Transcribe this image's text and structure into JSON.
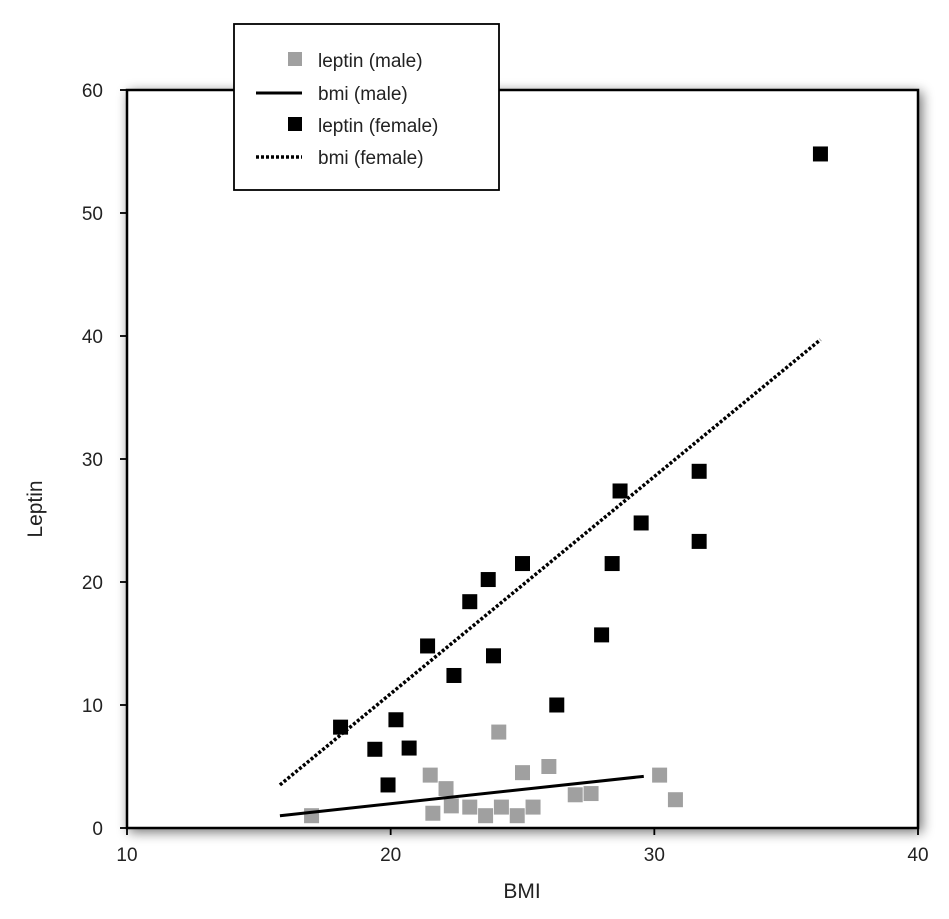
{
  "chart_data": {
    "type": "scatter",
    "title": "",
    "xlabel": "BMI",
    "ylabel": "Leptin",
    "xlim": [
      10,
      40
    ],
    "ylim": [
      0,
      60
    ],
    "x_ticks": [
      10,
      20,
      30,
      40
    ],
    "y_ticks": [
      0,
      10,
      20,
      30,
      40,
      50,
      60
    ],
    "grid": false,
    "legend_position": "top-left",
    "series": [
      {
        "name": "leptin (male)",
        "kind": "points",
        "color": "#a0a0a0",
        "points": [
          [
            17.0,
            1.0
          ],
          [
            21.5,
            4.3
          ],
          [
            21.6,
            1.2
          ],
          [
            22.1,
            3.2
          ],
          [
            22.3,
            1.8
          ],
          [
            23.0,
            1.7
          ],
          [
            23.6,
            1.0
          ],
          [
            24.1,
            7.8
          ],
          [
            24.2,
            1.7
          ],
          [
            24.8,
            1.0
          ],
          [
            25.0,
            4.5
          ],
          [
            25.4,
            1.7
          ],
          [
            26.0,
            5.0
          ],
          [
            27.0,
            2.7
          ],
          [
            27.6,
            2.8
          ],
          [
            30.2,
            4.3
          ],
          [
            30.8,
            2.3
          ]
        ]
      },
      {
        "name": "bmi (male)",
        "kind": "line",
        "style": "solid",
        "color": "#000000",
        "points": [
          [
            15.8,
            1.0
          ],
          [
            29.6,
            4.2
          ]
        ]
      },
      {
        "name": "leptin (female)",
        "kind": "points",
        "color": "#000000",
        "points": [
          [
            18.1,
            8.2
          ],
          [
            19.4,
            6.4
          ],
          [
            19.9,
            3.5
          ],
          [
            20.2,
            8.8
          ],
          [
            20.7,
            6.5
          ],
          [
            21.4,
            14.8
          ],
          [
            22.4,
            12.4
          ],
          [
            23.0,
            18.4
          ],
          [
            23.7,
            20.2
          ],
          [
            23.9,
            14.0
          ],
          [
            25.0,
            21.5
          ],
          [
            26.3,
            10.0
          ],
          [
            28.0,
            15.7
          ],
          [
            28.4,
            21.5
          ],
          [
            28.7,
            27.4
          ],
          [
            29.5,
            24.8
          ],
          [
            31.7,
            29.0
          ],
          [
            31.7,
            23.3
          ],
          [
            36.3,
            54.8
          ]
        ]
      },
      {
        "name": "bmi (female)",
        "kind": "line",
        "style": "dotted",
        "color": "#000000",
        "points": [
          [
            15.8,
            3.5
          ],
          [
            36.3,
            39.7
          ]
        ]
      }
    ]
  }
}
